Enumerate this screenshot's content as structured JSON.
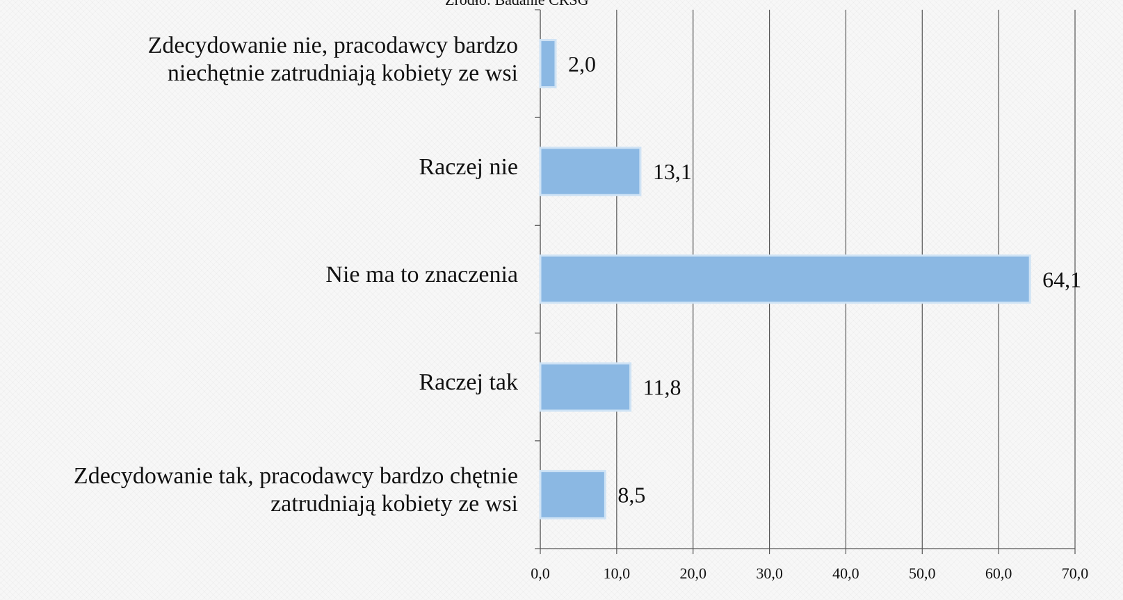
{
  "chart_data": {
    "type": "hbar",
    "source": "Źródło: Badanie CRSG",
    "categories": [
      "Zdecydowanie nie, pracodawcy bardzo\nniechętnie zatrudniają kobiety ze wsi",
      "Raczej nie",
      "Nie ma to znaczenia",
      "Raczej tak",
      "Zdecydowanie tak, pracodawcy bardzo chętnie\nzatrudniają kobiety ze wsi"
    ],
    "values": [
      2.0,
      13.1,
      64.1,
      11.8,
      8.5
    ],
    "value_labels": [
      "2,0",
      "13,1",
      "64,1",
      "11,8",
      "8,5"
    ],
    "color": "#8bb8e3",
    "xlim": [
      0,
      70
    ],
    "xticks": [
      {
        "value": 0,
        "label": "0,0"
      },
      {
        "value": 10,
        "label": "10,0"
      },
      {
        "value": 20,
        "label": "20,0"
      },
      {
        "value": 30,
        "label": "30,0"
      },
      {
        "value": 40,
        "label": "40,0"
      },
      {
        "value": 50,
        "label": "50,0"
      },
      {
        "value": 60,
        "label": "60,0"
      },
      {
        "value": 70,
        "label": "70,0"
      }
    ],
    "grid": true
  }
}
